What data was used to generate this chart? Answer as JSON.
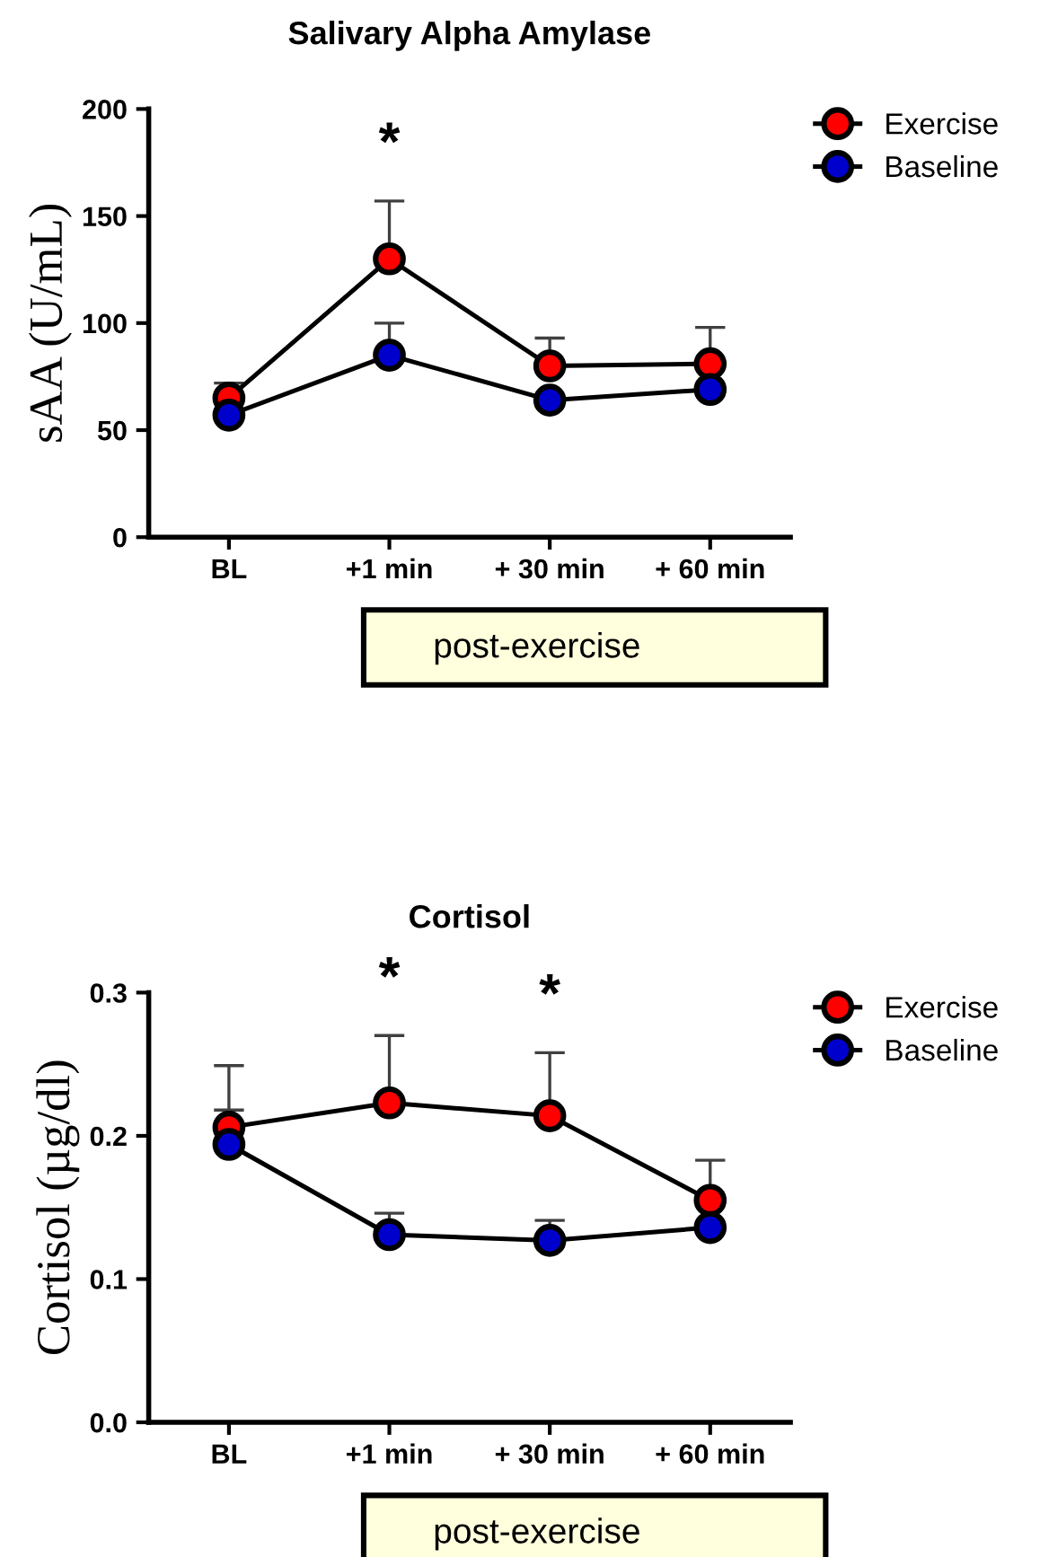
{
  "chart_data": [
    {
      "type": "line",
      "title": "Salivary Alpha Amylase",
      "ylabel": "sAA (U/mL)",
      "categories": [
        "BL",
        "+1 min",
        "+ 30 min",
        "+ 60 min"
      ],
      "series": [
        {
          "name": "Exercise",
          "color": "#ff0000",
          "values": [
            65,
            130,
            80,
            81
          ],
          "errors": [
            [
              65,
              72
            ],
            [
              130,
              157
            ],
            [
              80,
              93
            ],
            [
              81,
              98
            ]
          ]
        },
        {
          "name": "Baseline",
          "color": "#0000cc",
          "values": [
            57,
            85,
            64,
            69
          ],
          "errors": [
            null,
            [
              85,
              100
            ],
            null,
            null
          ]
        }
      ],
      "ylim": [
        0,
        200
      ],
      "yticks": [
        0,
        50,
        100,
        150,
        200
      ],
      "marker": "circle",
      "line_style": "solid",
      "legend": "top right",
      "grid": false,
      "annotations": [
        "*",
        "post-exercise"
      ]
    },
    {
      "type": "line",
      "title": "Cortisol",
      "ylabel": "Cortisol (µg/dl)",
      "categories": [
        "BL",
        "+1 min",
        "+ 30 min",
        "+ 60 min"
      ],
      "series": [
        {
          "name": "Exercise",
          "color": "#ff0000",
          "values": [
            0.206,
            0.223,
            0.214,
            0.155
          ],
          "errors": [
            [
              0.206,
              0.249
            ],
            [
              0.223,
              0.27
            ],
            [
              0.214,
              0.258
            ],
            [
              0.155,
              0.183
            ]
          ]
        },
        {
          "name": "Baseline",
          "color": "#0000cc",
          "values": [
            0.194,
            0.131,
            0.127,
            0.136
          ],
          "errors": [
            [
              0.194,
              0.218
            ],
            [
              0.131,
              0.146
            ],
            [
              0.127,
              0.141
            ],
            null
          ]
        }
      ],
      "ylim": [
        0,
        0.3
      ],
      "yticks": [
        {
          "value": 0,
          "label": "0.0"
        },
        0.1,
        0.2,
        0.3
      ],
      "marker": "circle",
      "line_style": "solid",
      "legend": "top right",
      "grid": false,
      "annotations": [
        "*",
        "*",
        "post-exercise"
      ]
    }
  ]
}
